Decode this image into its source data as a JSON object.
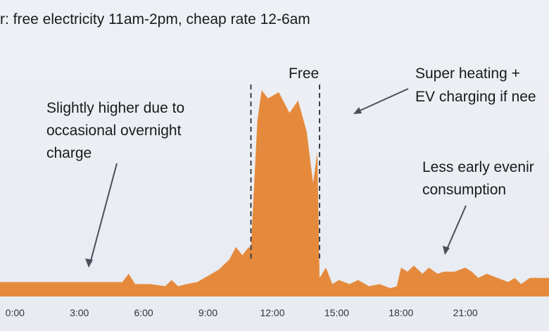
{
  "slide": {
    "title": "r: free electricity 11am-2pm, cheap rate 12-6am"
  },
  "colors": {
    "area_fill": "#e58a3c",
    "background": "#edf0f5",
    "text": "#1a1a1a",
    "arrow": "#4a4f5a",
    "divider": "#3a3f49"
  },
  "annotations": {
    "free": "Free",
    "overnight": [
      "Slightly higher due to",
      "occasional overnight",
      "charge"
    ],
    "heating": [
      "Super heating +",
      "EV charging if nee"
    ],
    "evening": [
      "Less early evenir",
      "consumption"
    ]
  },
  "chart_data": {
    "type": "area",
    "title": "r: free electricity 11am-2pm, cheap rate 12-6am",
    "xlabel": "",
    "ylabel": "",
    "xlim": [
      -0.7,
      24.9
    ],
    "ylim": [
      0,
      100
    ],
    "grid": false,
    "tick_labels": [
      "0:00",
      "3:00",
      "6:00",
      "9:00",
      "12:00",
      "15:00",
      "18:00",
      "21:00"
    ],
    "ticks": [
      0,
      3,
      6,
      9,
      12,
      15,
      18,
      21
    ],
    "free_period": [
      11,
      14.2
    ],
    "x": [
      -0.7,
      0.5,
      1,
      2,
      3,
      4,
      5,
      5.3,
      5.6,
      6,
      6.3,
      7,
      7.3,
      7.6,
      8,
      8.5,
      9,
      9.5,
      10,
      10.3,
      10.6,
      10.9,
      11,
      11.3,
      11.5,
      11.8,
      12.3,
      12.8,
      13.2,
      13.6,
      13.9,
      14.1,
      14.2,
      14.5,
      14.8,
      15.1,
      15.6,
      16,
      16.5,
      17,
      17.5,
      17.8,
      18,
      18.3,
      18.6,
      19,
      19.3,
      19.7,
      20,
      20.5,
      21,
      21.3,
      21.6,
      22,
      22.5,
      23,
      23.3,
      23.6,
      24,
      24.9
    ],
    "y": [
      7,
      7,
      7,
      7,
      7,
      7,
      7,
      11,
      6,
      6,
      6,
      5,
      8,
      5,
      6,
      7,
      10,
      13,
      18,
      24,
      20,
      24,
      23,
      85,
      100,
      96,
      99,
      89,
      95,
      80,
      55,
      70,
      9,
      14,
      6,
      8,
      6,
      8,
      5,
      6,
      4,
      5,
      14,
      12,
      15,
      11,
      14,
      11,
      12,
      12,
      14,
      12,
      9,
      11,
      9,
      7,
      9,
      6,
      9,
      9
    ]
  }
}
